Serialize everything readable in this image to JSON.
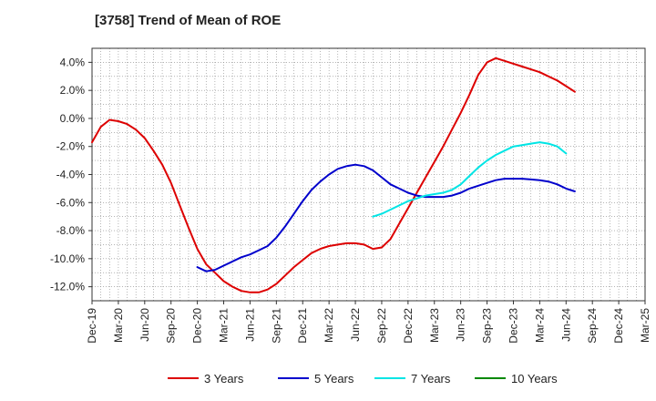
{
  "title": "[3758]  Trend of Mean of ROE",
  "chart_data": {
    "type": "line",
    "title": "[3758]  Trend of Mean of ROE",
    "xlabel": "",
    "ylabel": "",
    "x_ticks": [
      "Dec-19",
      "Mar-20",
      "Jun-20",
      "Sep-20",
      "Dec-20",
      "Mar-21",
      "Jun-21",
      "Sep-21",
      "Dec-21",
      "Mar-22",
      "Jun-22",
      "Sep-22",
      "Dec-22",
      "Mar-23",
      "Jun-23",
      "Sep-23",
      "Dec-23",
      "Mar-24",
      "Jun-24",
      "Sep-24",
      "Dec-24",
      "Mar-25"
    ],
    "y_ticks": [
      4.0,
      2.0,
      0.0,
      -2.0,
      -4.0,
      -6.0,
      -8.0,
      -10.0,
      -12.0
    ],
    "y_tick_labels": [
      "4.0%",
      "2.0%",
      "0.0%",
      "-2.0%",
      "-4.0%",
      "-6.0%",
      "-8.0%",
      "-10.0%",
      "-12.0%"
    ],
    "ylim": [
      -13.0,
      5.0
    ],
    "grid": true,
    "legend_position": "bottom",
    "series": [
      {
        "name": "3 Years",
        "color": "#dd0000",
        "x": [
          0,
          1,
          2,
          3,
          4,
          5,
          6,
          7,
          8,
          9,
          10,
          11,
          12,
          13,
          14,
          15,
          16,
          17,
          18,
          19,
          20,
          21,
          22,
          23,
          24,
          25,
          26,
          27,
          28,
          29,
          30,
          31,
          32,
          33,
          34,
          35,
          36,
          37,
          38,
          39,
          40,
          41,
          42,
          43,
          44,
          45,
          46,
          47,
          48,
          49,
          50,
          51,
          52,
          53,
          54,
          55,
          56,
          57,
          58,
          59,
          60
        ],
        "values": [
          -1.7,
          -0.6,
          -0.1,
          -0.2,
          -0.4,
          -0.8,
          -1.4,
          -2.3,
          -3.3,
          -4.6,
          -6.2,
          -7.8,
          -9.3,
          -10.4,
          -11.0,
          -11.6,
          -12.0,
          -12.3,
          -12.4,
          -12.4,
          -12.2,
          -11.8,
          -11.2,
          -10.6,
          -10.1,
          -9.6,
          -9.3,
          -9.1,
          -9.0,
          -8.9,
          -8.9,
          -9.0,
          -9.3,
          -9.2,
          -8.6,
          -7.5,
          -6.4,
          -5.3,
          -4.2,
          -3.1,
          -2.0,
          -0.8,
          0.4,
          1.7,
          3.1,
          4.0,
          4.3,
          4.1,
          3.9,
          3.7,
          3.5,
          3.3,
          3.0,
          2.7,
          2.3,
          1.9,
          null,
          null,
          null,
          null,
          null
        ]
      },
      {
        "name": "5 Years",
        "color": "#0000cc",
        "x": [
          12,
          13,
          14,
          15,
          16,
          17,
          18,
          19,
          20,
          21,
          22,
          23,
          24,
          25,
          26,
          27,
          28,
          29,
          30,
          31,
          32,
          33,
          34,
          35,
          36,
          37,
          38,
          39,
          40,
          41,
          42,
          43,
          44,
          45,
          46,
          47,
          48,
          49,
          50,
          51,
          52,
          53,
          54,
          55,
          56
        ],
        "values": [
          -10.6,
          -10.9,
          -10.8,
          -10.5,
          -10.2,
          -9.9,
          -9.7,
          -9.4,
          -9.1,
          -8.5,
          -7.7,
          -6.8,
          -5.9,
          -5.1,
          -4.5,
          -4.0,
          -3.6,
          -3.4,
          -3.3,
          -3.4,
          -3.7,
          -4.2,
          -4.7,
          -5.0,
          -5.3,
          -5.5,
          -5.6,
          -5.6,
          -5.6,
          -5.5,
          -5.3,
          -5.0,
          -4.8,
          -4.6,
          -4.4,
          -4.3,
          -4.3,
          -4.3,
          -4.35,
          -4.4,
          -4.5,
          -4.7,
          -5.0,
          -5.2,
          null
        ]
      },
      {
        "name": "7 Years",
        "color": "#00e5e5",
        "x": [
          32,
          33,
          34,
          35,
          36,
          37,
          38,
          39,
          40,
          41,
          42,
          43,
          44,
          45,
          46,
          47,
          48,
          49,
          50,
          51,
          52,
          53,
          54,
          55,
          56
        ],
        "values": [
          -7.0,
          -6.8,
          -6.5,
          -6.2,
          -5.9,
          -5.7,
          -5.5,
          -5.4,
          -5.3,
          -5.1,
          -4.7,
          -4.1,
          -3.5,
          -3.0,
          -2.6,
          -2.3,
          -2.0,
          -1.9,
          -1.8,
          -1.7,
          -1.8,
          -2.0,
          -2.5,
          null,
          null
        ]
      },
      {
        "name": "10 Years",
        "color": "#008800",
        "x": [],
        "values": []
      }
    ]
  }
}
